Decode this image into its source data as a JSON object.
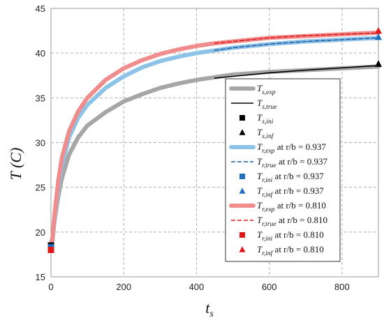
{
  "chart_data": {
    "type": "line",
    "xlabel": "t_s",
    "ylabel": "T (C)",
    "xlim": [
      0,
      900
    ],
    "ylim": [
      15,
      45
    ],
    "xticks": [
      0,
      200,
      400,
      600,
      800
    ],
    "yticks": [
      15,
      20,
      25,
      30,
      35,
      40,
      45
    ],
    "grid": true,
    "legend_placement": "bottom-right",
    "series": [
      {
        "group": "s",
        "kind": "exp",
        "label_main": "T",
        "label_sub": "s,exp",
        "label_suffix": "",
        "color": "#a6a6a6",
        "x": [
          0,
          5,
          10,
          20,
          30,
          50,
          75,
          100,
          150,
          200,
          250,
          300,
          350,
          400,
          450,
          500,
          600,
          700,
          800,
          900
        ],
        "y": [
          18.5,
          19.6,
          21.3,
          24.0,
          26.0,
          28.7,
          30.6,
          31.9,
          33.4,
          34.6,
          35.4,
          36.1,
          36.6,
          37.0,
          37.3,
          37.6,
          37.9,
          38.1,
          38.3,
          38.5
        ]
      },
      {
        "group": "s",
        "kind": "true",
        "label_main": "T",
        "label_sub": "s,true",
        "label_suffix": "",
        "color": "#000000",
        "x": [
          450,
          500,
          600,
          700,
          800,
          900
        ],
        "y": [
          37.2,
          37.4,
          37.8,
          38.1,
          38.35,
          38.6
        ]
      },
      {
        "group": "s",
        "kind": "ini",
        "label_main": "T",
        "label_sub": "s,ini",
        "label_suffix": "",
        "color": "#000000",
        "x": [
          0
        ],
        "y": [
          18.5
        ]
      },
      {
        "group": "s",
        "kind": "inf",
        "label_main": "T",
        "label_sub": "s,inf",
        "label_suffix": "",
        "color": "#000000",
        "x": [
          900
        ],
        "y": [
          38.8
        ]
      },
      {
        "group": "r937",
        "kind": "exp",
        "label_main": "T",
        "label_sub": "r,exp",
        "label_suffix": " at r/b = 0.937",
        "color": "#8ec3e8",
        "x": [
          0,
          5,
          10,
          20,
          30,
          50,
          75,
          100,
          150,
          200,
          250,
          300,
          350,
          400,
          450,
          500,
          600,
          700,
          800,
          900
        ],
        "y": [
          18.0,
          19.3,
          21.5,
          25.0,
          27.5,
          30.6,
          32.8,
          34.2,
          36.1,
          37.4,
          38.4,
          39.1,
          39.6,
          40.0,
          40.3,
          40.6,
          41.0,
          41.3,
          41.5,
          41.7
        ]
      },
      {
        "group": "r937",
        "kind": "true",
        "label_main": "T",
        "label_sub": "r,true",
        "label_suffix": " at r/b = 0.937",
        "color": "#1f5fa8",
        "x": [
          450,
          500,
          600,
          700,
          800,
          900
        ],
        "y": [
          40.3,
          40.6,
          41.0,
          41.3,
          41.5,
          41.7
        ]
      },
      {
        "group": "r937",
        "kind": "ini",
        "label_main": "T",
        "label_sub": "r,ini",
        "label_suffix": " at r/b = 0.937",
        "color": "#1f6fc2",
        "x": [
          0
        ],
        "y": [
          18.3
        ]
      },
      {
        "group": "r937",
        "kind": "inf",
        "label_main": "T",
        "label_sub": "r,inf",
        "label_suffix": " at r/b = 0.937",
        "color": "#1f6fc2",
        "x": [
          900
        ],
        "y": [
          41.8
        ]
      },
      {
        "group": "r810",
        "kind": "exp",
        "label_main": "T",
        "label_sub": "r,exp",
        "label_suffix": " at r/b = 0.810",
        "color": "#f08c8c",
        "x": [
          0,
          5,
          10,
          20,
          30,
          50,
          75,
          100,
          150,
          200,
          250,
          300,
          350,
          400,
          450,
          500,
          600,
          700,
          800,
          900
        ],
        "y": [
          18.0,
          19.6,
          22.0,
          25.7,
          28.3,
          31.3,
          33.5,
          35.0,
          37.0,
          38.3,
          39.2,
          39.9,
          40.4,
          40.8,
          41.1,
          41.3,
          41.7,
          41.9,
          42.1,
          42.3
        ]
      },
      {
        "group": "r810",
        "kind": "true",
        "label_main": "T",
        "label_sub": "r,true",
        "label_suffix": " at r/b = 0.810",
        "color": "#e01818",
        "x": [
          450,
          500,
          600,
          700,
          800,
          900
        ],
        "y": [
          41.1,
          41.3,
          41.7,
          41.95,
          42.1,
          42.25
        ]
      },
      {
        "group": "r810",
        "kind": "ini",
        "label_main": "T",
        "label_sub": "r,ini",
        "label_suffix": " at r/b = 0.810",
        "color": "#e01818",
        "x": [
          0
        ],
        "y": [
          18.0
        ]
      },
      {
        "group": "r810",
        "kind": "inf",
        "label_main": "T",
        "label_sub": "r,inf",
        "label_suffix": " at r/b = 0.810",
        "color": "#e01818",
        "x": [
          900
        ],
        "y": [
          42.5
        ]
      }
    ]
  }
}
